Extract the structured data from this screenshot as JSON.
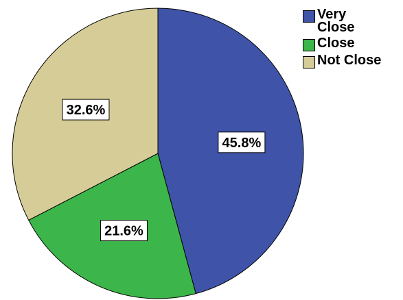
{
  "chart_data": {
    "type": "pie",
    "categories": [
      "Very Close",
      "Close",
      "Not Close"
    ],
    "values": [
      45.8,
      21.6,
      32.6
    ],
    "value_labels": [
      "45.8%",
      "21.6%",
      "32.6%"
    ],
    "colors": [
      "#3f54a8",
      "#3cb54a",
      "#d6cc97"
    ],
    "start_angle": "12 o'clock",
    "direction": "clockwise",
    "legend": {
      "placement": "top-right",
      "entries": [
        "Very Close",
        "Close",
        "Not Close"
      ]
    }
  }
}
